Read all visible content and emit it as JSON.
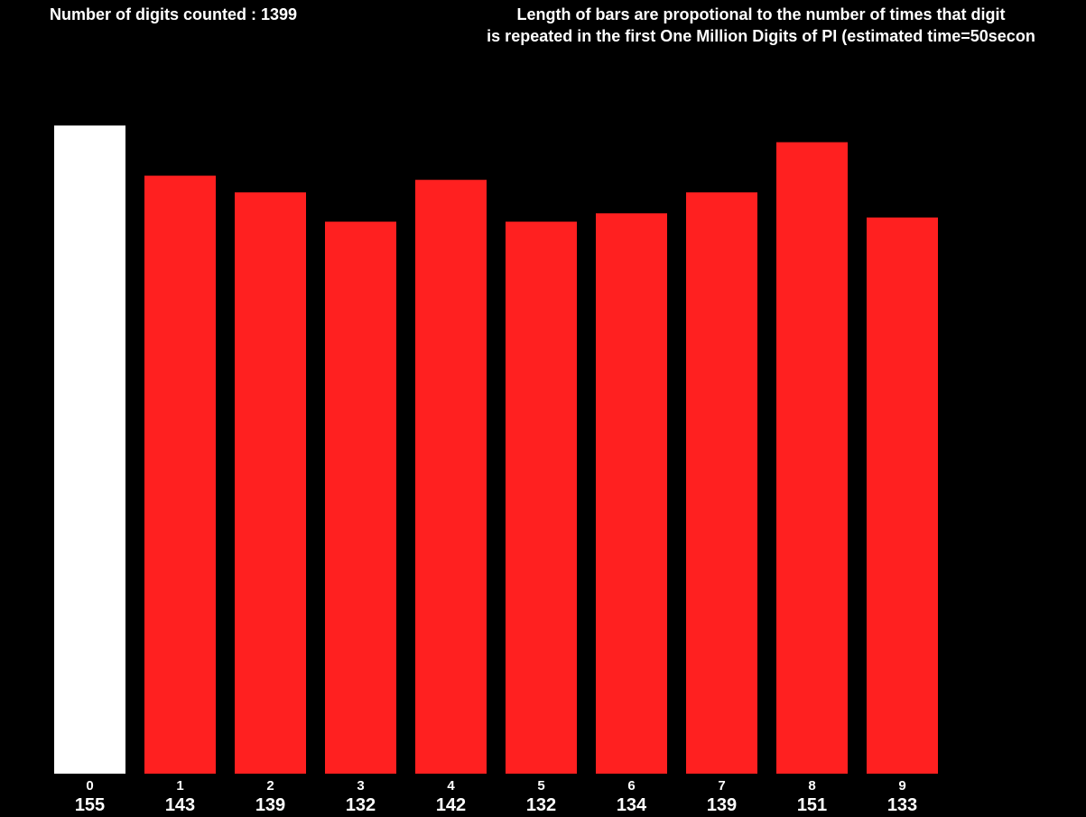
{
  "chart_data": {
    "type": "bar",
    "title": "Number of digits counted : 1399",
    "subtitle": [
      "Length of bars are propotional to the number of times that digit",
      "is repeated in the first One Million Digits of PI (estimated time=50secon"
    ],
    "categories": [
      "0",
      "1",
      "2",
      "3",
      "4",
      "5",
      "6",
      "7",
      "8",
      "9"
    ],
    "values": [
      155,
      143,
      139,
      132,
      142,
      132,
      134,
      139,
      151,
      133
    ],
    "colors": [
      "#ffffff",
      "#ff2020",
      "#ff2020",
      "#ff2020",
      "#ff2020",
      "#ff2020",
      "#ff2020",
      "#ff2020",
      "#ff2020",
      "#ff2020"
    ]
  }
}
